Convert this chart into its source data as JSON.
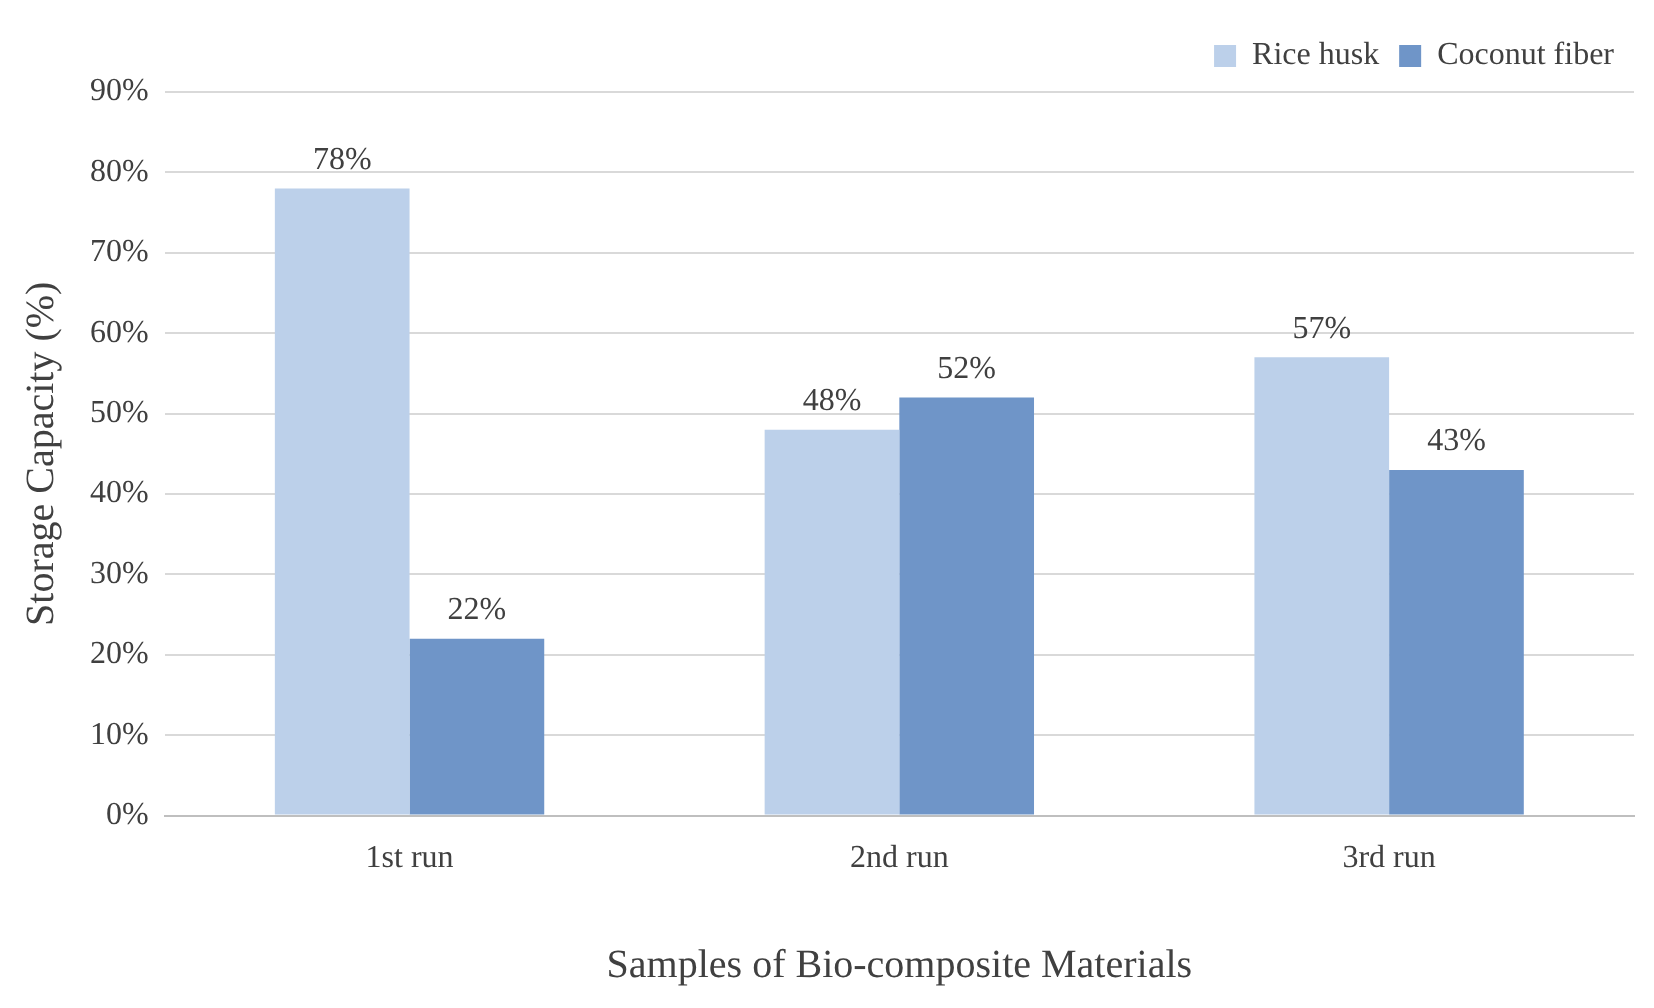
{
  "chart_data": {
    "type": "bar",
    "xlabel": "Samples of Bio-composite Materials",
    "ylabel": "Storage Capacity (%)",
    "categories": [
      "1st run",
      "2nd run",
      "3rd run"
    ],
    "series": [
      {
        "name": "Rice husk",
        "color": "#bcd0ea",
        "values": [
          78,
          48,
          57
        ],
        "value_labels": [
          "78%",
          "48%",
          "57%"
        ]
      },
      {
        "name": "Coconut fiber",
        "color": "#6f95c8",
        "values": [
          22,
          52,
          43
        ],
        "value_labels": [
          "22%",
          "52%",
          "43%"
        ]
      }
    ],
    "ylim": [
      0,
      90
    ],
    "yticks": [
      {
        "value": 0,
        "label": "0%"
      },
      {
        "value": 10,
        "label": "10%"
      },
      {
        "value": 20,
        "label": "20%"
      },
      {
        "value": 30,
        "label": "30%"
      },
      {
        "value": 40,
        "label": "40%"
      },
      {
        "value": 50,
        "label": "50%"
      },
      {
        "value": 60,
        "label": "60%"
      },
      {
        "value": 70,
        "label": "70%"
      },
      {
        "value": 80,
        "label": "80%"
      },
      {
        "value": 90,
        "label": "90%"
      }
    ],
    "grid": "y",
    "legend": "top right"
  }
}
